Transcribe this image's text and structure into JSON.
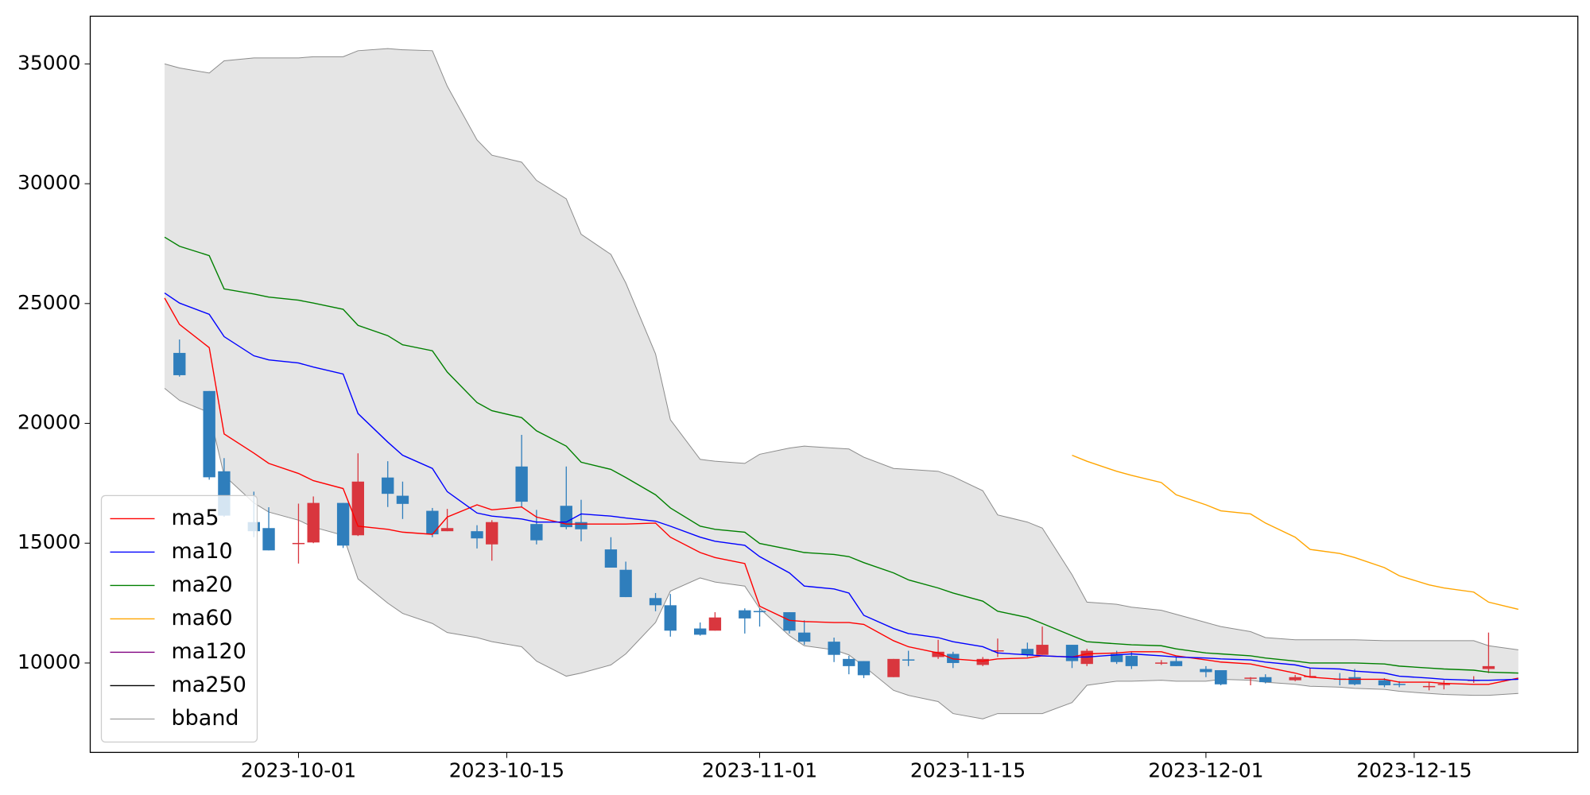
{
  "chart_data": {
    "type": "candlestick",
    "x": [
      "2023-09-22",
      "2023-09-23",
      "2023-09-25",
      "2023-09-26",
      "2023-09-28",
      "2023-09-29",
      "2023-10-01",
      "2023-10-02",
      "2023-10-04",
      "2023-10-05",
      "2023-10-07",
      "2023-10-08",
      "2023-10-10",
      "2023-10-11",
      "2023-10-13",
      "2023-10-14",
      "2023-10-16",
      "2023-10-17",
      "2023-10-19",
      "2023-10-20",
      "2023-10-22",
      "2023-10-23",
      "2023-10-25",
      "2023-10-26",
      "2023-10-28",
      "2023-10-29",
      "2023-10-31",
      "2023-11-01",
      "2023-11-03",
      "2023-11-04",
      "2023-11-06",
      "2023-11-07",
      "2023-11-08",
      "2023-11-10",
      "2023-11-11",
      "2023-11-13",
      "2023-11-14",
      "2023-11-16",
      "2023-11-17",
      "2023-11-19",
      "2023-11-20",
      "2023-11-22",
      "2023-11-23",
      "2023-11-25",
      "2023-11-26",
      "2023-11-28",
      "2023-11-29",
      "2023-12-01",
      "2023-12-02",
      "2023-12-04",
      "2023-12-05",
      "2023-12-07",
      "2023-12-08",
      "2023-12-10",
      "2023-12-11",
      "2023-12-13",
      "2023-12-14",
      "2023-12-16",
      "2023-12-17",
      "2023-12-19",
      "2023-12-20",
      "2023-12-22"
    ],
    "open": [
      null,
      22940,
      21350,
      18000,
      15880,
      15630,
      14980,
      15030,
      16680,
      15330,
      17740,
      16980,
      16350,
      15500,
      15500,
      14950,
      18200,
      15800,
      16560,
      15880,
      14740,
      13890,
      12710,
      12410,
      11440,
      11350,
      12200,
      12170,
      12120,
      11270,
      10890,
      10170,
      10080,
      9410,
      10150,
      10250,
      10380,
      9920,
      10490,
      10590,
      10340,
      10760,
      9960,
      10380,
      10300,
      9980,
      10080,
      9750,
      9700,
      9350,
      9410,
      9280,
      9440,
      9350,
      9410,
      9280,
      9130,
      9010,
      9100,
      9260,
      9750,
      null
    ],
    "high": [
      null,
      23500,
      21350,
      18550,
      17150,
      16500,
      16650,
      16950,
      16680,
      18750,
      18420,
      17570,
      16470,
      16430,
      15750,
      15960,
      19520,
      16390,
      18200,
      16810,
      15250,
      14230,
      12920,
      12880,
      11690,
      12120,
      12280,
      12280,
      12120,
      11780,
      11060,
      10300,
      10080,
      10170,
      10510,
      10970,
      10470,
      10250,
      11020,
      10850,
      11520,
      10760,
      10590,
      10510,
      10470,
      10120,
      10250,
      9870,
      9700,
      9410,
      9530,
      9500,
      9790,
      9580,
      9750,
      9370,
      9240,
      9200,
      9280,
      9450,
      11270,
      null
    ],
    "low": [
      null,
      21950,
      17650,
      16100,
      15250,
      14700,
      14150,
      15000,
      14800,
      15300,
      16510,
      16010,
      15250,
      15500,
      14780,
      14270,
      16510,
      14950,
      15580,
      15080,
      13980,
      12750,
      12160,
      11100,
      11140,
      11350,
      11230,
      11520,
      11230,
      10760,
      10040,
      9530,
      9370,
      9410,
      9870,
      10170,
      9790,
      9870,
      10250,
      10250,
      10340,
      9790,
      9870,
      9960,
      9750,
      9920,
      9870,
      9410,
      9070,
      9070,
      9150,
      9240,
      9400,
      9070,
      9070,
      8990,
      8990,
      8860,
      8900,
      9170,
      9580,
      null
    ],
    "close": [
      null,
      22010,
      17750,
      16150,
      15500,
      14700,
      15010,
      16680,
      14900,
      17570,
      17060,
      16640,
      15370,
      15630,
      15200,
      15880,
      16730,
      15120,
      15670,
      15580,
      13980,
      12750,
      12410,
      11350,
      11180,
      11900,
      11860,
      12130,
      11350,
      10890,
      10340,
      9870,
      9490,
      10170,
      10110,
      10470,
      10000,
      10170,
      10530,
      10340,
      10760,
      10080,
      10510,
      10040,
      9870,
      10020,
      9870,
      9620,
      9110,
      9390,
      9200,
      9410,
      9460,
      9330,
      9110,
      9070,
      9100,
      9040,
      9130,
      9300,
      9870,
      null
    ],
    "up_color": "#d9363e",
    "down_color": "#2f7ebc",
    "series": [
      {
        "name": "ma5",
        "color": "#ff0000",
        "values": [
          25230,
          24130,
          23160,
          19560,
          18760,
          18330,
          17910,
          17610,
          17280,
          15710,
          15580,
          15460,
          15370,
          16090,
          16600,
          16390,
          16510,
          16090,
          15800,
          15800,
          15800,
          15800,
          15840,
          15250,
          14610,
          14400,
          14150,
          12370,
          11780,
          11730,
          11690,
          11690,
          11610,
          10930,
          10680,
          10420,
          10170,
          10080,
          10170,
          10210,
          10300,
          10250,
          10380,
          10420,
          10470,
          10470,
          10300,
          10130,
          10040,
          9960,
          9830,
          9580,
          9410,
          9320,
          9320,
          9320,
          9200,
          9200,
          9150,
          9110,
          9110,
          9370
        ]
      },
      {
        "name": "ma10",
        "color": "#0000ff",
        "values": [
          25440,
          25020,
          24550,
          23620,
          22820,
          22650,
          22520,
          22350,
          22060,
          20410,
          19220,
          18670,
          18120,
          17150,
          16260,
          16130,
          16010,
          15880,
          15880,
          16220,
          16130,
          16050,
          15920,
          15710,
          15250,
          15080,
          14910,
          14440,
          13760,
          13210,
          13090,
          12920,
          11990,
          11440,
          11230,
          11060,
          10890,
          10680,
          10420,
          10340,
          10300,
          10250,
          10250,
          10340,
          10380,
          10300,
          10250,
          10210,
          10170,
          10130,
          10040,
          9920,
          9790,
          9750,
          9660,
          9580,
          9450,
          9370,
          9320,
          9280,
          9280,
          9320
        ]
      },
      {
        "name": "ma20",
        "color": "#008000",
        "values": [
          27770,
          27390,
          27000,
          25610,
          25400,
          25270,
          25140,
          25020,
          24760,
          24090,
          23660,
          23280,
          23030,
          22140,
          20870,
          20530,
          20240,
          19690,
          19050,
          18380,
          18080,
          17740,
          17020,
          16470,
          15710,
          15580,
          15460,
          14990,
          14740,
          14610,
          14530,
          14440,
          14190,
          13760,
          13470,
          13130,
          12920,
          12580,
          12160,
          11900,
          11650,
          11140,
          10890,
          10800,
          10760,
          10720,
          10590,
          10420,
          10380,
          10300,
          10210,
          10080,
          10000,
          10000,
          10000,
          9960,
          9870,
          9790,
          9750,
          9700,
          9620,
          9580
        ]
      },
      {
        "name": "ma60",
        "color": "#ffa500",
        "values": [
          null,
          null,
          null,
          null,
          null,
          null,
          null,
          null,
          null,
          null,
          null,
          null,
          null,
          null,
          null,
          null,
          null,
          null,
          null,
          null,
          null,
          null,
          null,
          null,
          null,
          null,
          null,
          null,
          null,
          null,
          null,
          null,
          null,
          null,
          null,
          null,
          null,
          null,
          null,
          null,
          null,
          18670,
          18420,
          18000,
          17830,
          17530,
          17020,
          16600,
          16350,
          16220,
          15840,
          15250,
          14740,
          14570,
          14400,
          13980,
          13640,
          13260,
          13130,
          12960,
          12540,
          12240
        ]
      },
      {
        "name": "ma120",
        "color": "#800080"
      },
      {
        "name": "ma250",
        "color": "#000000"
      },
      {
        "name": "bband",
        "color": "#8c8c8c",
        "fill": "#e5e5e5",
        "upper": [
          35000,
          34830,
          34620,
          35130,
          35250,
          35250,
          35250,
          35300,
          35300,
          35550,
          35640,
          35590,
          35550,
          34070,
          31830,
          31190,
          30900,
          30140,
          29370,
          27890,
          27050,
          25860,
          22900,
          20150,
          18500,
          18420,
          18330,
          18710,
          18970,
          19050,
          18970,
          18930,
          18590,
          18120,
          18080,
          18000,
          17780,
          17190,
          16180,
          15880,
          15630,
          13680,
          12540,
          12450,
          12330,
          12200,
          12030,
          11690,
          11520,
          11310,
          11060,
          10970,
          10970,
          10970,
          10970,
          10930,
          10930,
          10930,
          10930,
          10930,
          10720,
          10550
        ],
        "lower": [
          21460,
          20960,
          20450,
          17830,
          16680,
          16300,
          15960,
          15670,
          15330,
          13510,
          12500,
          12070,
          11650,
          11270,
          11060,
          10890,
          10680,
          10080,
          9450,
          9580,
          9920,
          10380,
          11690,
          13000,
          13550,
          13380,
          13210,
          12280,
          11140,
          10720,
          10550,
          10340,
          9870,
          8860,
          8650,
          8390,
          7890,
          7670,
          7890,
          7890,
          7890,
          8350,
          9070,
          9240,
          9240,
          9280,
          9240,
          9240,
          9320,
          9280,
          9200,
          9110,
          9030,
          8990,
          8940,
          8900,
          8820,
          8730,
          8690,
          8650,
          8650,
          8730
        ]
      }
    ],
    "xlim": [
      "2023-09-17",
      "2023-12-26"
    ],
    "xticks": [
      "2023-10-01",
      "2023-10-15",
      "2023-11-01",
      "2023-11-15",
      "2023-12-01",
      "2023-12-15"
    ],
    "ylim": [
      6270,
      36990
    ],
    "yticks": [
      10000,
      15000,
      20000,
      25000,
      30000,
      35000
    ],
    "legend": "lower left"
  }
}
